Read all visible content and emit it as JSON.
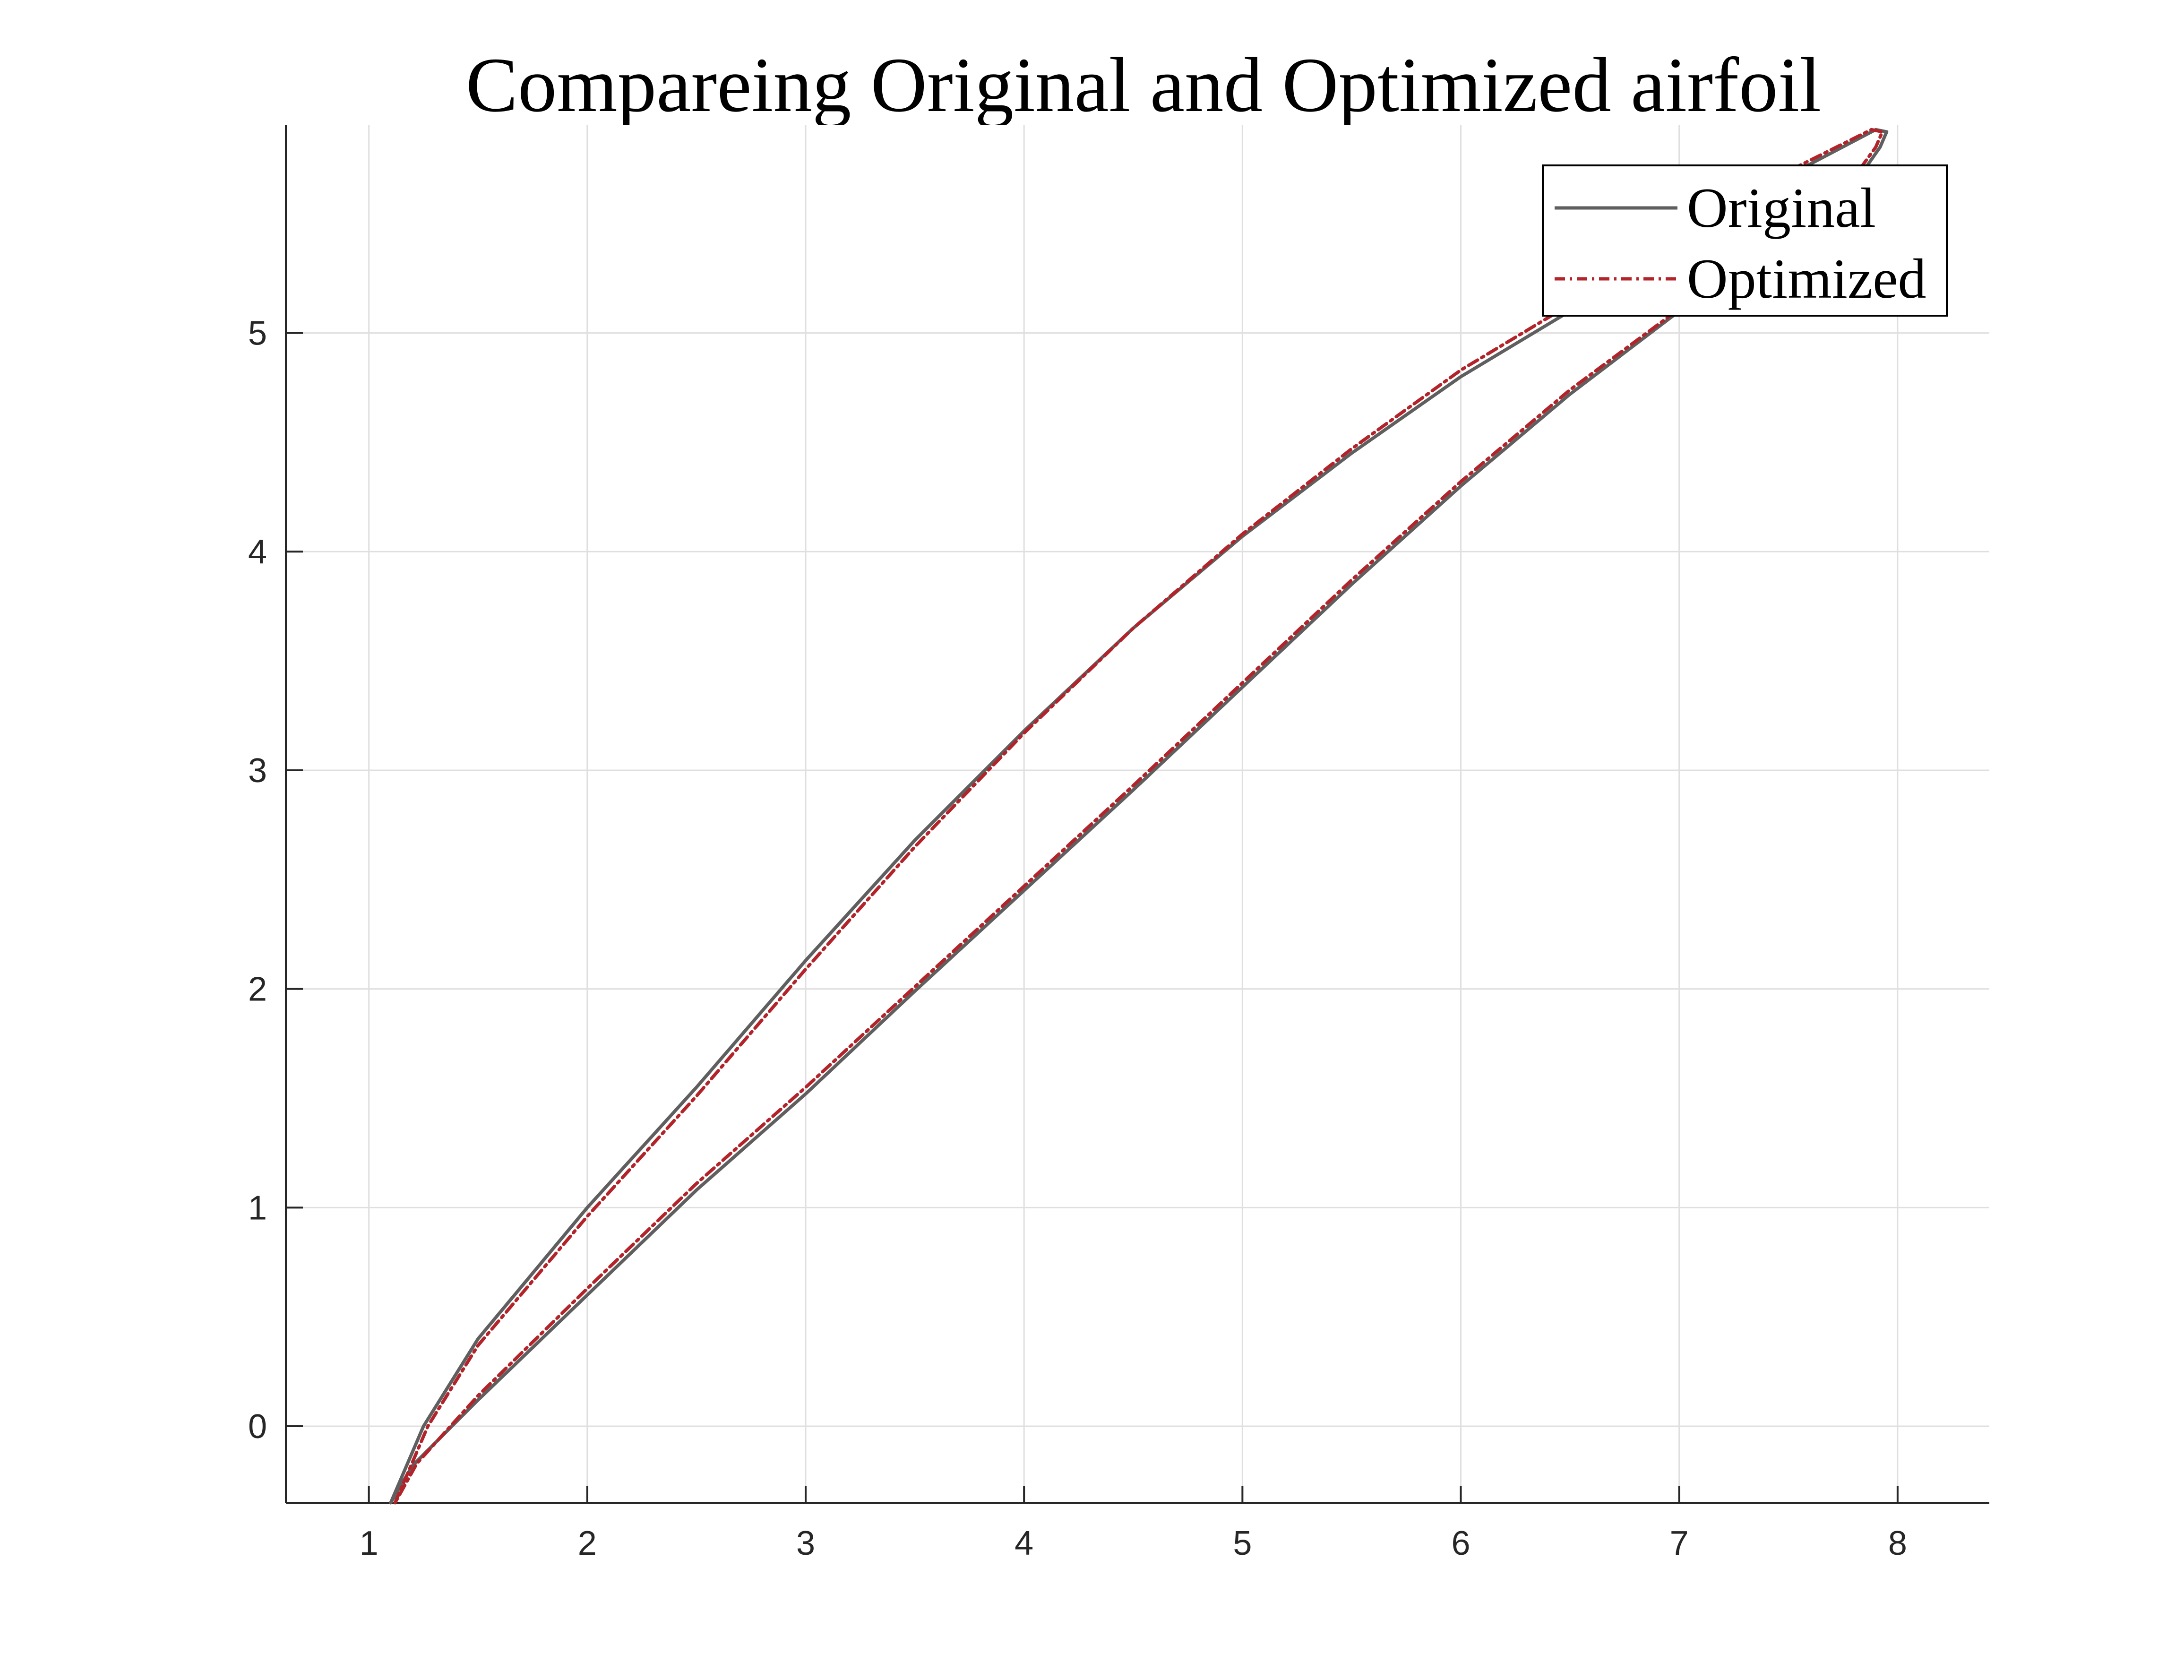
{
  "chart_data": {
    "type": "line",
    "title": "Compareing Original and Optimized airfoil",
    "xlabel": "",
    "ylabel": "",
    "xlim": [
      0.62,
      8.42
    ],
    "ylim": [
      -0.35,
      5.95
    ],
    "xticks": [
      1,
      2,
      3,
      4,
      5,
      6,
      7,
      8
    ],
    "yticks": [
      0,
      1,
      2,
      3,
      4,
      5
    ],
    "grid": true,
    "legend": {
      "position": "top-right"
    },
    "series": [
      {
        "name": "Original",
        "color": "#5f5f5f",
        "style": "solid",
        "x": [
          1.1,
          1.25,
          1.5,
          2.0,
          2.5,
          3.0,
          3.5,
          4.0,
          4.5,
          5.0,
          5.5,
          6.0,
          6.5,
          7.0,
          7.5,
          7.9,
          7.95,
          7.92,
          7.85,
          7.5,
          7.0,
          6.5,
          6.0,
          5.5,
          5.0,
          4.5,
          4.0,
          3.5,
          3.0,
          2.5,
          2.0,
          1.5,
          1.2,
          1.1
        ],
        "y": [
          -0.35,
          0.0,
          0.4,
          1.0,
          1.55,
          2.13,
          2.68,
          3.18,
          3.65,
          4.07,
          4.45,
          4.8,
          5.1,
          5.42,
          5.72,
          5.93,
          5.92,
          5.85,
          5.75,
          5.48,
          5.1,
          4.72,
          4.3,
          3.85,
          3.38,
          2.91,
          2.45,
          1.99,
          1.52,
          1.08,
          0.6,
          0.12,
          -0.18,
          -0.35
        ]
      },
      {
        "name": "Optimized",
        "color": "#b2232a",
        "style": "dash-dot",
        "x": [
          1.12,
          1.27,
          1.5,
          2.0,
          2.5,
          3.0,
          3.5,
          4.0,
          4.5,
          5.0,
          5.5,
          6.0,
          6.5,
          7.0,
          7.5,
          7.88,
          7.93,
          7.9,
          7.82,
          7.5,
          7.0,
          6.5,
          6.0,
          5.5,
          5.0,
          4.5,
          4.0,
          3.5,
          3.0,
          2.5,
          2.0,
          1.5,
          1.22,
          1.12
        ],
        "y": [
          -0.35,
          0.0,
          0.37,
          0.96,
          1.51,
          2.09,
          2.65,
          3.17,
          3.65,
          4.08,
          4.47,
          4.83,
          5.13,
          5.45,
          5.74,
          5.93,
          5.92,
          5.85,
          5.74,
          5.49,
          5.11,
          4.74,
          4.32,
          3.87,
          3.4,
          2.93,
          2.47,
          2.01,
          1.55,
          1.11,
          0.63,
          0.14,
          -0.17,
          -0.35
        ]
      }
    ]
  }
}
